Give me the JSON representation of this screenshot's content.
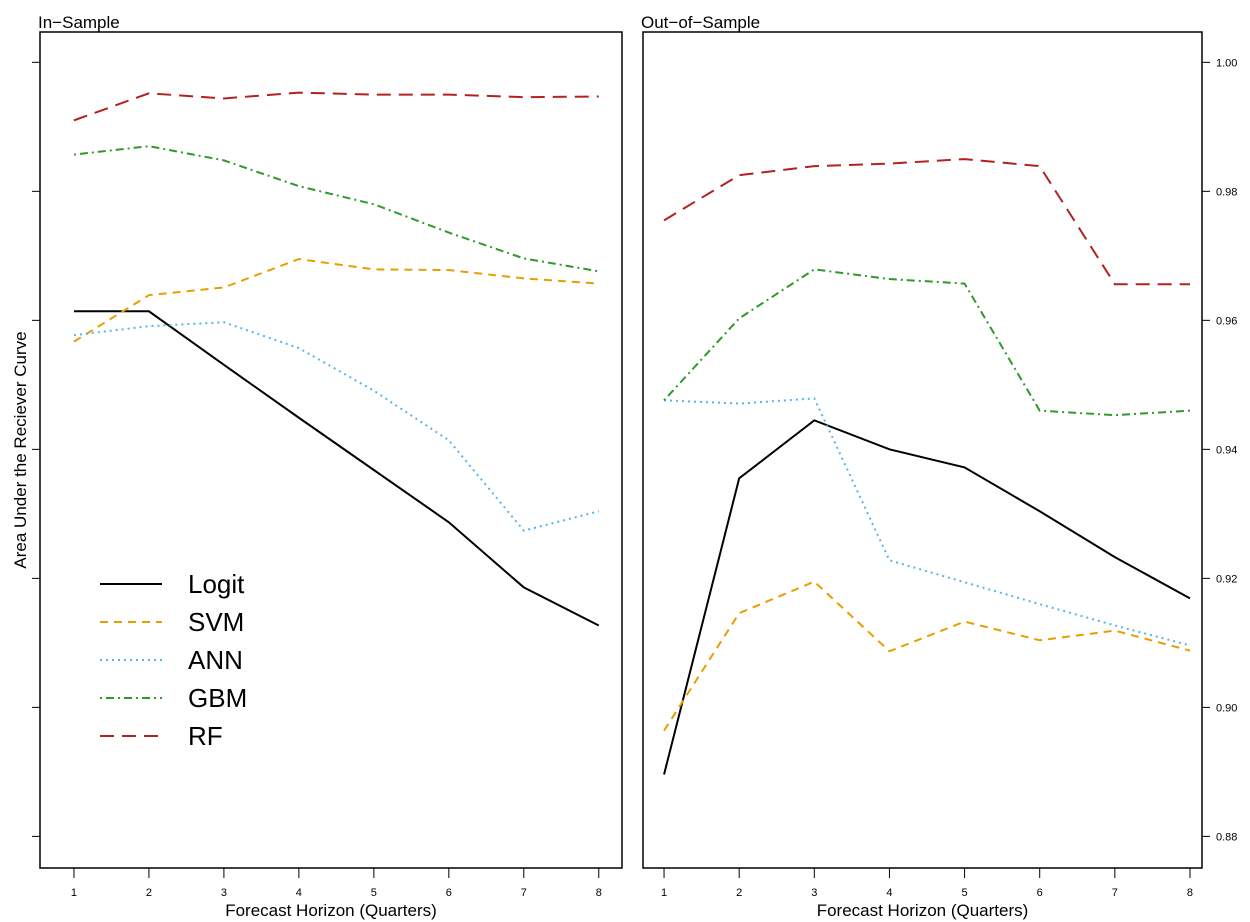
{
  "chart_data": [
    {
      "type": "line",
      "title": "In−Sample",
      "x_label": "Forecast Horizon (Quarters)",
      "y_label": "Area Under the Reciever Curve",
      "x": [
        1,
        2,
        3,
        4,
        5,
        6,
        7,
        8
      ],
      "xlim": [
        0.547,
        8.31
      ],
      "xticks": [
        1,
        2,
        3,
        4,
        5,
        6,
        7,
        8
      ],
      "ylim": [
        0.8751,
        1.0047
      ],
      "yticks": [
        0.88,
        0.9,
        0.92,
        0.94,
        0.96,
        0.98,
        1.0
      ],
      "ytick_labels": false,
      "legend": "lower-left",
      "series": [
        {
          "name": "Logit",
          "color": "#000000",
          "dash": "solid",
          "values": [
            0.9614,
            0.9614,
            0.9531,
            0.9449,
            0.9368,
            0.9287,
            0.9186,
            0.9127
          ]
        },
        {
          "name": "SVM",
          "color": "#E69F00",
          "dash": "dashed",
          "values": [
            0.9567,
            0.9639,
            0.9651,
            0.9695,
            0.9679,
            0.9678,
            0.9665,
            0.9657
          ]
        },
        {
          "name": "ANN",
          "color": "#56B4E9",
          "dash": "dotted",
          "values": [
            0.9577,
            0.9591,
            0.9597,
            0.9557,
            0.9491,
            0.9414,
            0.9274,
            0.9304
          ]
        },
        {
          "name": "GBM",
          "color": "#2E9A2E",
          "dash": "dotdash",
          "values": [
            0.9857,
            0.987,
            0.9848,
            0.9808,
            0.978,
            0.9736,
            0.9696,
            0.9676
          ]
        },
        {
          "name": "RF",
          "color": "#B22222",
          "dash": "longdash",
          "values": [
            0.991,
            0.9952,
            0.9944,
            0.9953,
            0.995,
            0.995,
            0.9946,
            0.9947
          ]
        }
      ]
    },
    {
      "type": "line",
      "title": "Out−of−Sample",
      "x_label": "Forecast Horizon (Quarters)",
      "x": [
        1,
        2,
        3,
        4,
        5,
        6,
        7,
        8
      ],
      "xlim": [
        0.72,
        8.16
      ],
      "xticks": [
        1,
        2,
        3,
        4,
        5,
        6,
        7,
        8
      ],
      "ylim": [
        0.8751,
        1.0047
      ],
      "yticks": [
        {
          "value": 0.88,
          "label": "0.88"
        },
        {
          "value": 0.9,
          "label": "0.90"
        },
        {
          "value": 0.92,
          "label": "0.92"
        },
        {
          "value": 0.94,
          "label": "0.94"
        },
        {
          "value": 0.96,
          "label": "0.96"
        },
        {
          "value": 0.98,
          "label": "0.98"
        },
        {
          "value": 1.0,
          "label": "1.00"
        }
      ],
      "ytick_labels": true,
      "series": [
        {
          "color": "#000000",
          "dash": "solid",
          "values": [
            0.8896,
            0.9355,
            0.9445,
            0.94,
            0.9372,
            0.9304,
            0.9233,
            0.9169
          ]
        },
        {
          "color": "#E69F00",
          "dash": "dashed",
          "values": [
            0.8964,
            0.9146,
            0.9195,
            0.9087,
            0.9133,
            0.9104,
            0.9119,
            0.9088
          ]
        },
        {
          "color": "#56B4E9",
          "dash": "dotted",
          "values": [
            0.9476,
            0.9471,
            0.9479,
            0.9228,
            0.9194,
            0.916,
            0.9127,
            0.9096
          ]
        },
        {
          "color": "#2E9A2E",
          "dash": "dotdash",
          "values": [
            0.9476,
            0.9603,
            0.9679,
            0.9664,
            0.9657,
            0.946,
            0.9453,
            0.946
          ]
        },
        {
          "color": "#B22222",
          "dash": "longdash",
          "values": [
            0.9755,
            0.9825,
            0.9839,
            0.9843,
            0.985,
            0.9839,
            0.9656,
            0.9656
          ]
        }
      ]
    }
  ]
}
